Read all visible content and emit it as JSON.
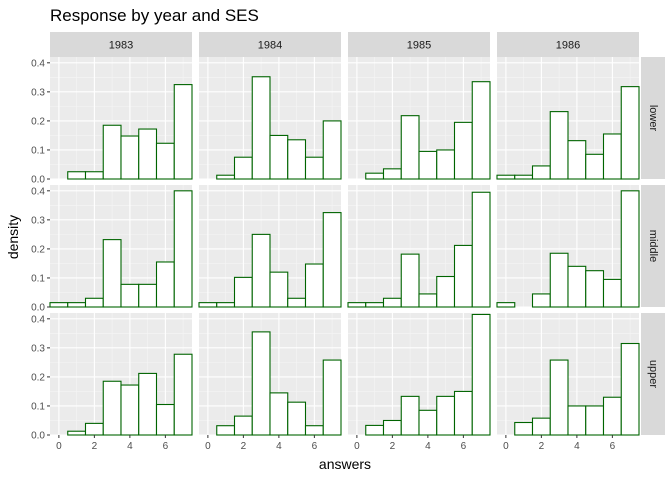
{
  "chart_data": {
    "type": "bar",
    "title": "Response by year and SES",
    "xlabel": "answers",
    "ylabel": "density",
    "facet_cols": [
      "1983",
      "1984",
      "1985",
      "1986"
    ],
    "facet_rows": [
      "lower",
      "middle",
      "upper"
    ],
    "bins": [
      0,
      1,
      2,
      3,
      4,
      5,
      6,
      7
    ],
    "bin_width": 1,
    "x_ticks": [
      0,
      2,
      4,
      6
    ],
    "y_ticks": [
      0.0,
      0.1,
      0.2,
      0.3,
      0.4
    ],
    "y_tick_labels": [
      "0.0",
      "0.1",
      "0.2",
      "0.3",
      "0.4"
    ],
    "xlim": [
      -0.5,
      7.5
    ],
    "ylim": [
      0,
      0.42
    ],
    "grid": true,
    "bar_fill": "#ffffff",
    "bar_outline": "#006400",
    "panels": [
      {
        "row": "lower",
        "col": "1983",
        "values": [
          0.0,
          0.025,
          0.025,
          0.185,
          0.148,
          0.172,
          0.123,
          0.325
        ]
      },
      {
        "row": "lower",
        "col": "1984",
        "values": [
          0.0,
          0.013,
          0.075,
          0.352,
          0.15,
          0.135,
          0.075,
          0.2
        ]
      },
      {
        "row": "lower",
        "col": "1985",
        "values": [
          0.0,
          0.02,
          0.035,
          0.218,
          0.095,
          0.1,
          0.195,
          0.335
        ]
      },
      {
        "row": "lower",
        "col": "1986",
        "values": [
          0.013,
          0.013,
          0.045,
          0.232,
          0.132,
          0.085,
          0.155,
          0.318
        ]
      },
      {
        "row": "middle",
        "col": "1983",
        "values": [
          0.015,
          0.015,
          0.03,
          0.232,
          0.078,
          0.078,
          0.155,
          0.4
        ]
      },
      {
        "row": "middle",
        "col": "1984",
        "values": [
          0.015,
          0.015,
          0.102,
          0.25,
          0.12,
          0.03,
          0.148,
          0.325
        ]
      },
      {
        "row": "middle",
        "col": "1985",
        "values": [
          0.015,
          0.015,
          0.03,
          0.182,
          0.045,
          0.105,
          0.212,
          0.395
        ]
      },
      {
        "row": "middle",
        "col": "1986",
        "values": [
          0.015,
          0.0,
          0.045,
          0.185,
          0.14,
          0.125,
          0.095,
          0.4
        ]
      },
      {
        "row": "upper",
        "col": "1983",
        "values": [
          0.0,
          0.013,
          0.04,
          0.185,
          0.172,
          0.212,
          0.105,
          0.278
        ]
      },
      {
        "row": "upper",
        "col": "1984",
        "values": [
          0.0,
          0.032,
          0.065,
          0.355,
          0.145,
          0.113,
          0.032,
          0.258
        ]
      },
      {
        "row": "upper",
        "col": "1985",
        "values": [
          0.0,
          0.033,
          0.05,
          0.133,
          0.085,
          0.133,
          0.15,
          0.415
        ]
      },
      {
        "row": "upper",
        "col": "1986",
        "values": [
          0.0,
          0.043,
          0.058,
          0.258,
          0.1,
          0.1,
          0.13,
          0.315
        ]
      }
    ]
  }
}
